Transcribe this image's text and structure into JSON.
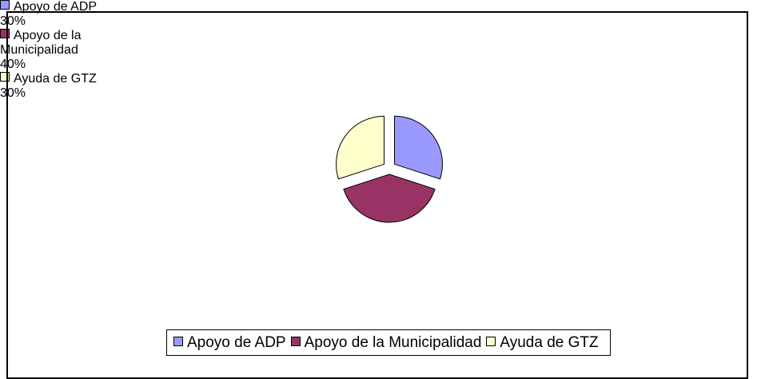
{
  "chart_data": {
    "type": "pie",
    "categories": [
      "Apoyo de ADP",
      "Apoyo de la Municipalidad",
      "Ayuda de GTZ"
    ],
    "values": [
      30,
      40,
      30
    ],
    "value_labels": [
      "30%",
      "40%",
      "30%"
    ],
    "colors": [
      "#9999ff",
      "#993366",
      "#ffffcc"
    ],
    "legend": "bottom"
  }
}
